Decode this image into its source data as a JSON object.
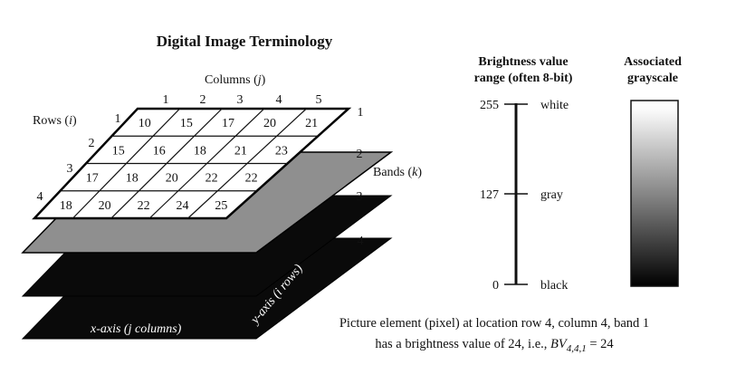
{
  "title": "Digital Image Terminology",
  "grid": {
    "columns_label_prefix": "Columns (",
    "columns_label_var": "j",
    "columns_label_suffix": ")",
    "rows_label_prefix": "Rows (",
    "rows_label_var": "i",
    "rows_label_suffix": ")",
    "column_numbers": [
      "1",
      "2",
      "3",
      "4",
      "5"
    ],
    "row_numbers": [
      "1",
      "2",
      "3",
      "4"
    ],
    "cell_values": [
      [
        "10",
        "15",
        "17",
        "20",
        "21"
      ],
      [
        "15",
        "16",
        "18",
        "21",
        "23"
      ],
      [
        "17",
        "18",
        "20",
        "22",
        "22"
      ],
      [
        "18",
        "20",
        "22",
        "24",
        "25"
      ]
    ]
  },
  "bands": {
    "label_prefix": "Bands (",
    "label_var": "k",
    "label_suffix": ")",
    "numbers": [
      "1",
      "2",
      "3",
      "4"
    ],
    "layer_colors": [
      "#ffffff",
      "#8f8f8f",
      "#0a0a0a",
      "#0a0a0a"
    ]
  },
  "axes": {
    "x_axis_label": "x-axis (j columns)",
    "y_axis_label": "y-axis (i rows)"
  },
  "brightness": {
    "header_line1": "Brightness value",
    "header_line2": "range (often 8-bit)",
    "ticks": [
      {
        "value": "255",
        "name": "white"
      },
      {
        "value": "127",
        "name": "gray"
      },
      {
        "value": "0",
        "name": "black"
      }
    ]
  },
  "grayscale": {
    "header_line1": "Associated",
    "header_line2": "grayscale",
    "top_color": "#ffffff",
    "bottom_color": "#000000"
  },
  "caption": {
    "line1": "Picture element (pixel) at location row 4, column 4, band 1",
    "line2_prefix": "has a brightness value of 24, i.e., ",
    "bv_symbol": "BV",
    "bv_subscript": "4,4,1",
    "bv_suffix": " = 24"
  }
}
